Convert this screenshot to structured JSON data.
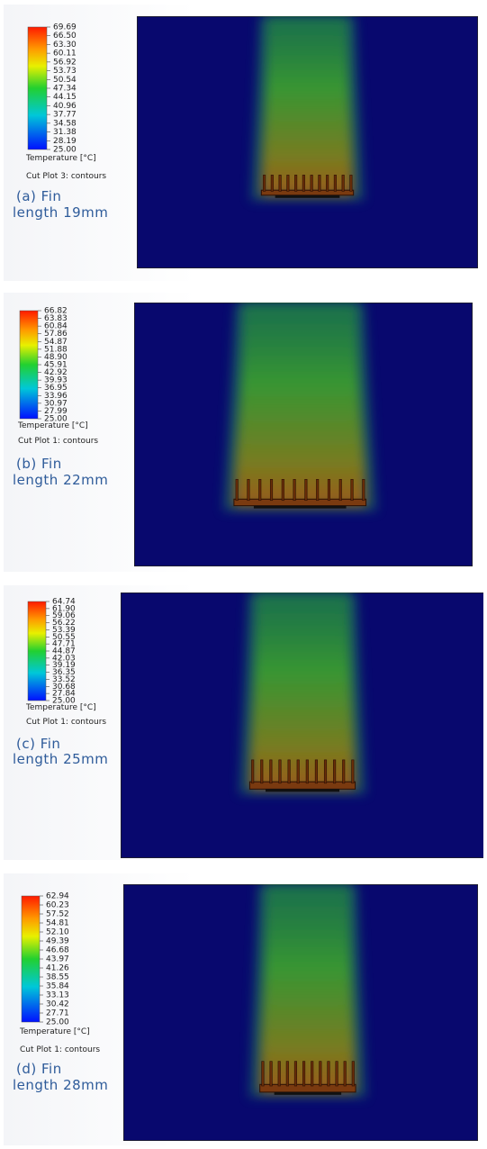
{
  "panels": [
    {
      "ticks": [
        "69.69",
        "66.50",
        "63.30",
        "60.11",
        "56.92",
        "53.73",
        "50.54",
        "47.34",
        "44.15",
        "40.96",
        "37.77",
        "34.58",
        "31.38",
        "28.19",
        "25.00"
      ],
      "unit_label": "Temperature [°C]",
      "plot_label": "Cut Plot 3: contours",
      "caption_lines": [
        "(a) Fin",
        "length  19mm"
      ]
    },
    {
      "ticks": [
        "66.82",
        "63.83",
        "60.84",
        "57.86",
        "54.87",
        "51.88",
        "48.90",
        "45.91",
        "42.92",
        "39.93",
        "36.95",
        "33.96",
        "30.97",
        "27.99",
        "25.00"
      ],
      "unit_label": "Temperature [°C]",
      "plot_label": "Cut Plot 1: contours",
      "caption_lines": [
        "(b) Fin",
        "length  22mm"
      ]
    },
    {
      "ticks": [
        "64.74",
        "61.90",
        "59.06",
        "56.22",
        "53.39",
        "50.55",
        "47.71",
        "44.87",
        "42.03",
        "39.19",
        "36.35",
        "33.52",
        "30.68",
        "27.84",
        "25.00"
      ],
      "unit_label": "Temperature [°C]",
      "plot_label": "Cut Plot 1: contours",
      "caption_lines": [
        "(c) Fin",
        "length  25mm"
      ]
    },
    {
      "ticks": [
        "62.94",
        "60.23",
        "57.52",
        "54.81",
        "52.10",
        "49.39",
        "46.68",
        "43.97",
        "41.26",
        "38.55",
        "35.84",
        "33.13",
        "30.42",
        "27.71",
        "25.00"
      ],
      "unit_label": "Temperature [°C]",
      "plot_label": "Cut Plot 1: contours",
      "caption_lines": [
        "(d) Fin",
        "length  28mm"
      ]
    }
  ]
}
